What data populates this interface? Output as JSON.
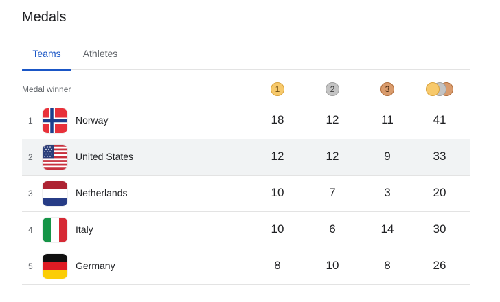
{
  "title": "Medals",
  "tabs": [
    {
      "label": "Teams",
      "active": true
    },
    {
      "label": "Athletes",
      "active": false
    }
  ],
  "header": {
    "label": "Medal winner",
    "gold": "1",
    "silver": "2",
    "bronze": "3"
  },
  "colors": {
    "accent": "#1a56c6",
    "gold": "#f7c96b",
    "silver": "#c4c4c4",
    "bronze": "#d99b6c",
    "highlight_row": "#f1f3f4"
  },
  "rows": [
    {
      "rank": "1",
      "country": "Norway",
      "flag": "norway-flag",
      "gold": "18",
      "silver": "12",
      "bronze": "11",
      "total": "41"
    },
    {
      "rank": "2",
      "country": "United States",
      "flag": "usa-flag",
      "gold": "12",
      "silver": "12",
      "bronze": "9",
      "total": "33"
    },
    {
      "rank": "3",
      "country": "Netherlands",
      "flag": "netherlands-flag",
      "gold": "10",
      "silver": "7",
      "bronze": "3",
      "total": "20"
    },
    {
      "rank": "4",
      "country": "Italy",
      "flag": "italy-flag",
      "gold": "10",
      "silver": "6",
      "bronze": "14",
      "total": "30"
    },
    {
      "rank": "5",
      "country": "Germany",
      "flag": "germany-flag",
      "gold": "8",
      "silver": "10",
      "bronze": "8",
      "total": "26"
    }
  ]
}
